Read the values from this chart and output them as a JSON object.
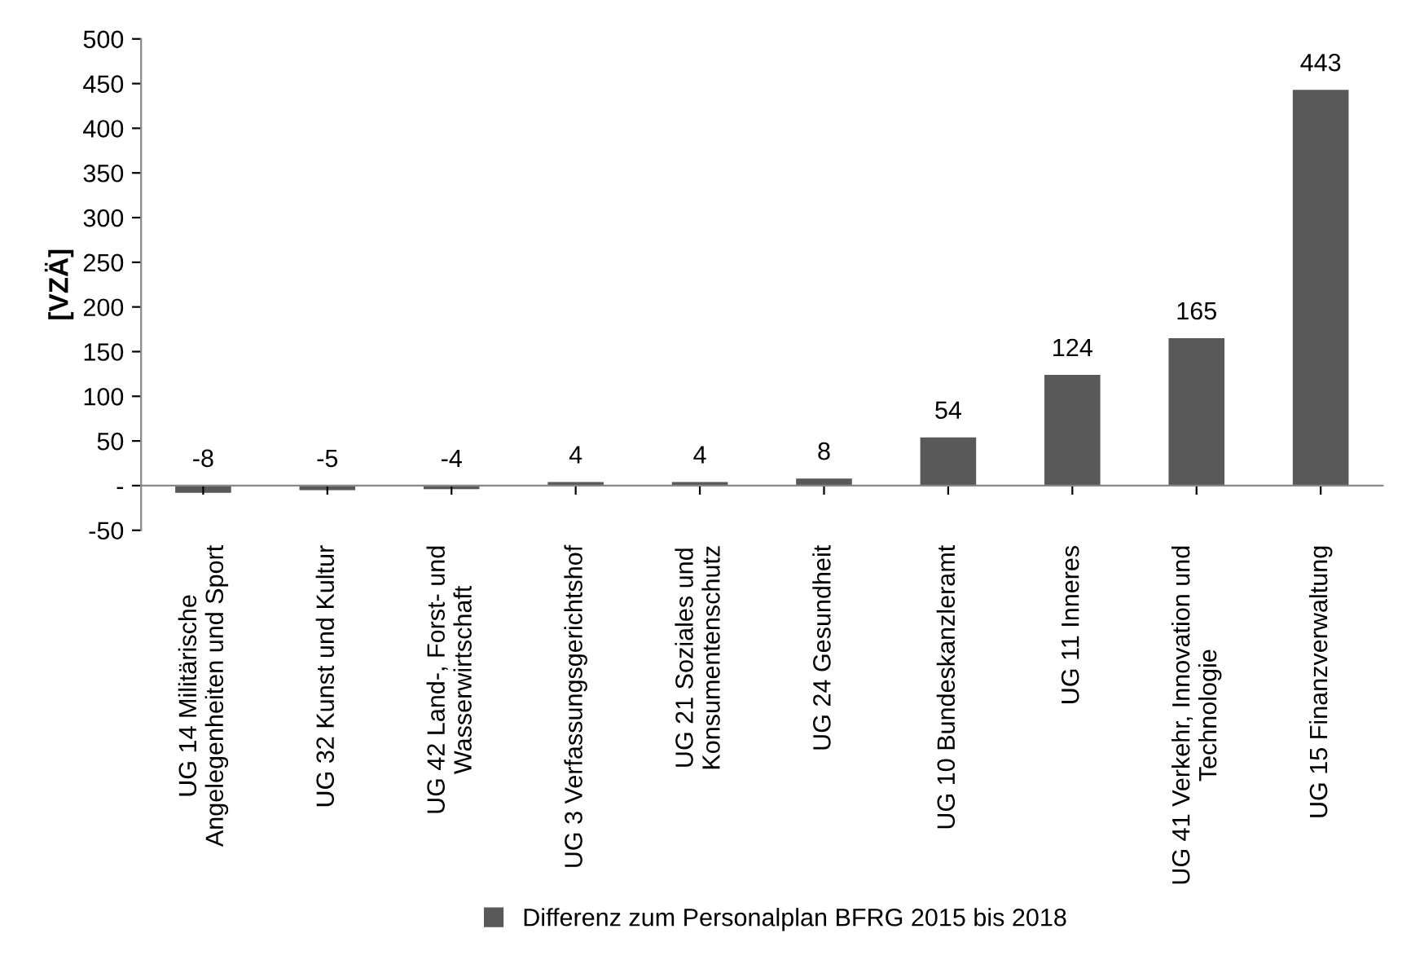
{
  "chart_data": {
    "type": "bar",
    "categories": [
      "UG 14 Militärische\nAngelegenheiten und Sport",
      "UG 32 Kunst und Kultur",
      "UG 42 Land-, Forst- und\nWasserwirtschaft",
      "UG 3 Verfassungsgerichtshof",
      "UG 21 Soziales und\nKonsumentenschutz",
      "UG 24 Gesundheit",
      "UG 10 Bundeskanzleramt",
      "UG 11 Inneres",
      "UG 41 Verkehr, Innovation und\nTechnologie",
      "UG 15 Finanzverwaltung"
    ],
    "series": [
      {
        "name": "Differenz zum Personalplan BFRG 2015 bis 2018",
        "color": "#595959",
        "values": [
          -8,
          -5,
          -4,
          4,
          4,
          8,
          54,
          124,
          165,
          443
        ]
      }
    ],
    "ylabel": "[VZÄ]",
    "ylim": [
      -50,
      500
    ],
    "yticks": [
      -50,
      {
        "value": 0,
        "label": "-"
      },
      50,
      100,
      150,
      200,
      250,
      300,
      350,
      400,
      450,
      500
    ],
    "data_labels": true,
    "grid": false,
    "legend": "bottom"
  }
}
